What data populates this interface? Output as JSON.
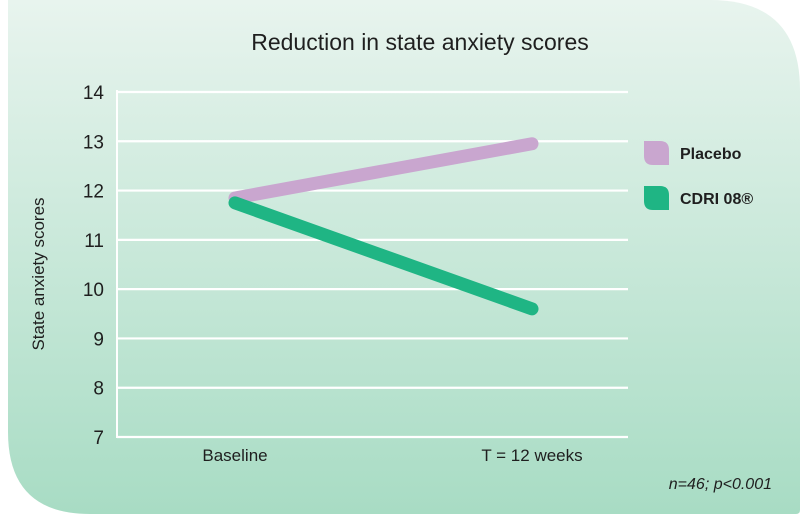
{
  "chart_data": {
    "type": "line",
    "title": "Reduction in state anxiety scores",
    "xlabel": "",
    "ylabel": "State anxiety scores",
    "categories": [
      "Baseline",
      "T = 12 weeks"
    ],
    "ylim": [
      7,
      14
    ],
    "yticks": [
      7,
      8,
      9,
      10,
      11,
      12,
      13,
      14
    ],
    "grid": true,
    "legend_position": "right",
    "series": [
      {
        "name": "Placebo",
        "values": [
          11.85,
          12.95
        ],
        "color": "#c9a6cf"
      },
      {
        "name": "CDRI 08®",
        "values": [
          11.75,
          9.6
        ],
        "color": "#1fb584"
      }
    ],
    "footnote": "n=46; p<0.001"
  },
  "colors": {
    "background_top": "#e8f4ee",
    "background_bottom": "#a8dcc4",
    "gridline": "#ffffff",
    "axis": "#ffffff"
  }
}
